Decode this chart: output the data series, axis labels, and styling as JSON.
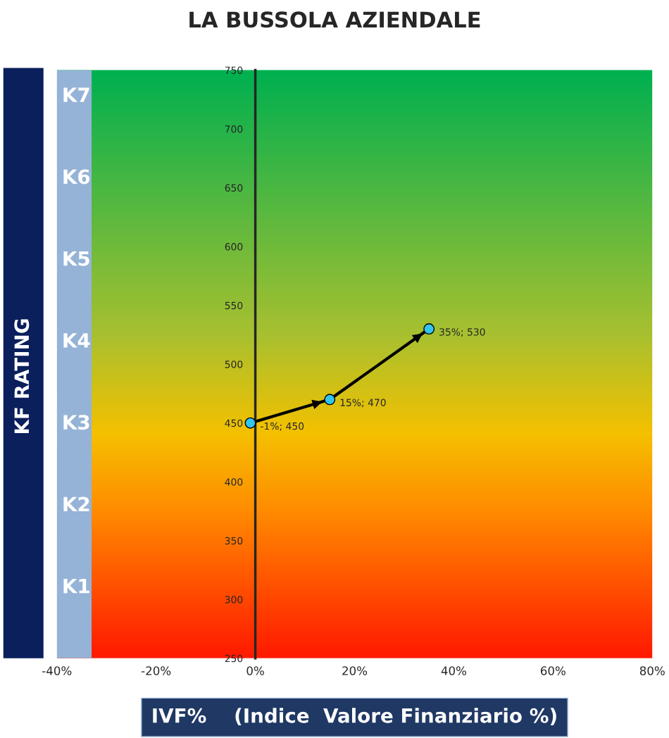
{
  "chart_data": {
    "type": "line",
    "title": "LA BUSSOLA AZIENDALE",
    "xlabel": "IVF%    (Indice  Valore Finanziario %)",
    "ylabel": "KF RATING",
    "series": [
      {
        "color": "#000000",
        "x": [
          -1,
          15,
          35
        ],
        "values": [
          450,
          470,
          530
        ],
        "value_labels": [
          "-1%; 450",
          "15%; 470",
          "35%; 530"
        ]
      }
    ],
    "marker": "circle",
    "line_style": "solid",
    "xlim": [
      -40,
      80
    ],
    "ylim": [
      250,
      750
    ],
    "xticks": [
      {
        "value": -40,
        "label": "-40%"
      },
      {
        "value": -20,
        "label": "-20%"
      },
      {
        "value": 0,
        "label": "0%"
      },
      {
        "value": 20,
        "label": "20%"
      },
      {
        "value": 40,
        "label": "40%"
      },
      {
        "value": 60,
        "label": "60%"
      },
      {
        "value": 80,
        "label": "80%"
      }
    ],
    "yticks": [
      250,
      300,
      350,
      400,
      450,
      500,
      550,
      600,
      650,
      700,
      750
    ],
    "annotations": [
      "K1",
      "K2",
      "K3",
      "K4",
      "K5",
      "K6",
      "K7"
    ],
    "bands": [
      {
        "axis": "x",
        "from": -40,
        "to": -33,
        "color": "#95b3d7"
      }
    ],
    "grid": false,
    "legend": false
  }
}
